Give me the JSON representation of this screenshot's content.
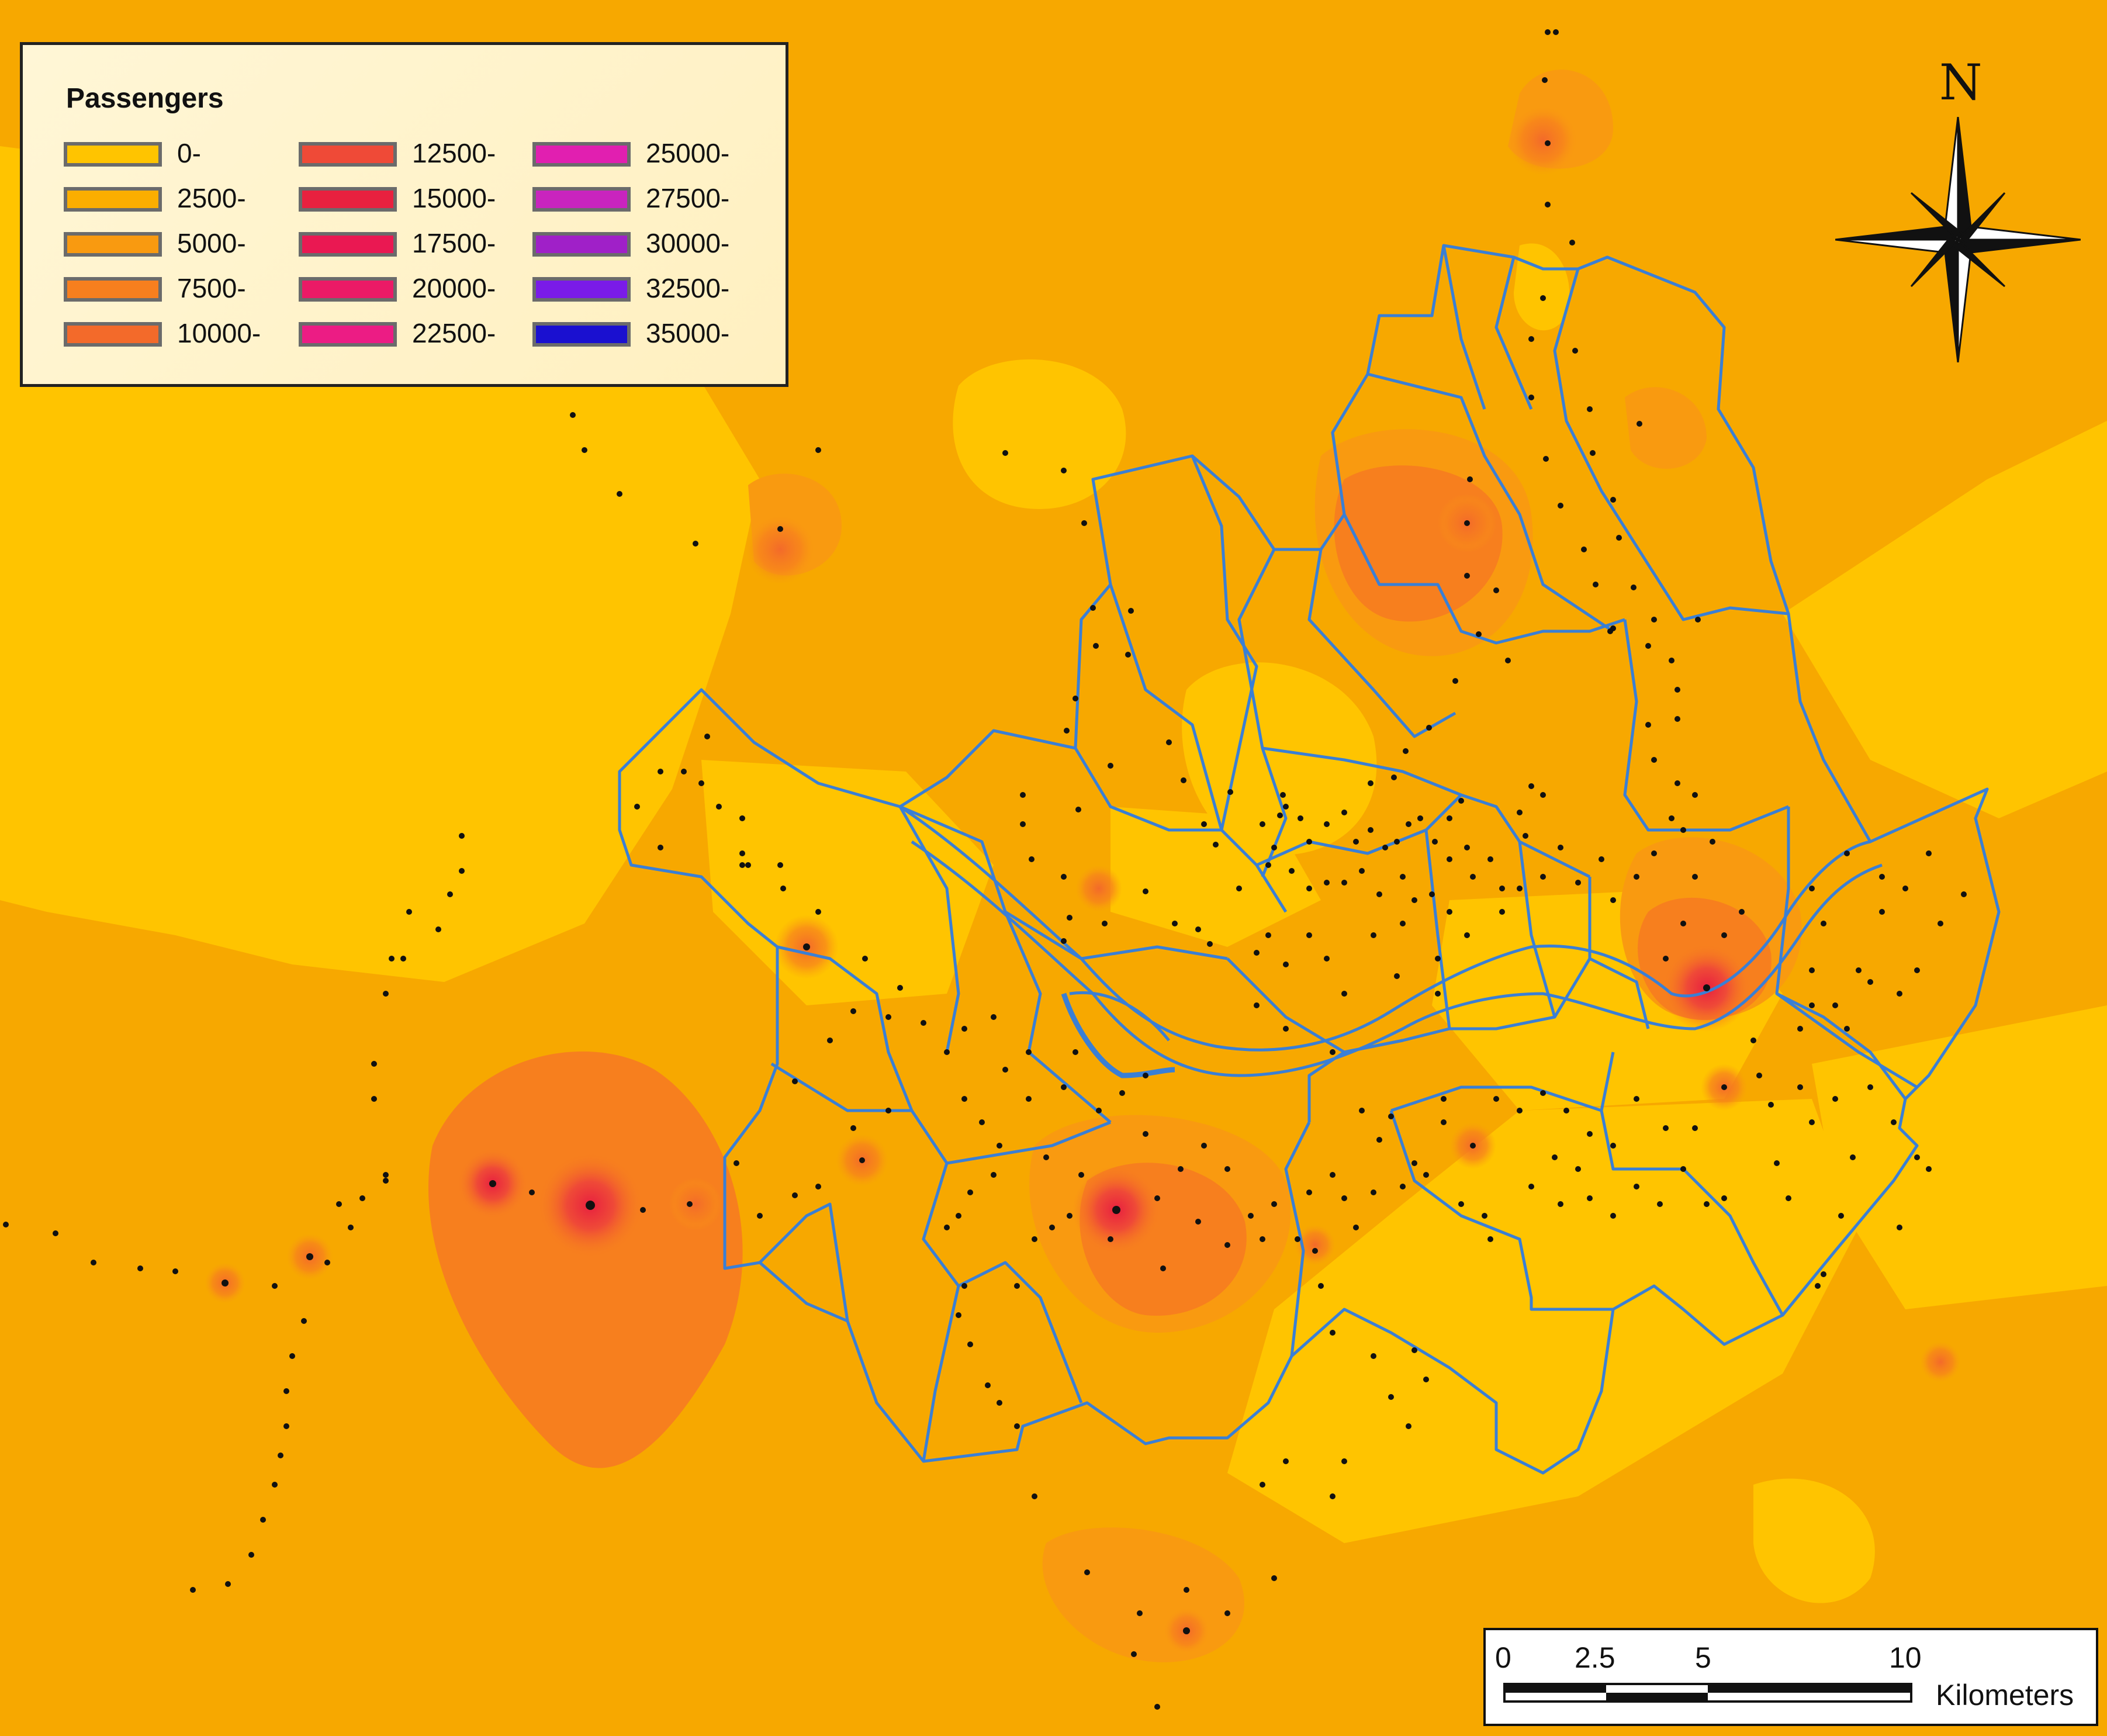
{
  "map": {
    "colors": {
      "background": "#F7A800",
      "light": "#FFC400",
      "boundary": "#3A7FD5",
      "station": "#111111"
    }
  },
  "legend": {
    "title": "Passengers",
    "items": [
      {
        "label": "0-",
        "color": "#FFC400"
      },
      {
        "label": "2500-",
        "color": "#FBAE00"
      },
      {
        "label": "5000-",
        "color": "#F99A10"
      },
      {
        "label": "7500-",
        "color": "#F77F1E"
      },
      {
        "label": "10000-",
        "color": "#F36A2A"
      },
      {
        "label": "12500-",
        "color": "#EF4A37"
      },
      {
        "label": "15000-",
        "color": "#E8213F"
      },
      {
        "label": "17500-",
        "color": "#EA1852"
      },
      {
        "label": "20000-",
        "color": "#EB1A66"
      },
      {
        "label": "22500-",
        "color": "#EC1C84"
      },
      {
        "label": "25000-",
        "color": "#E11FB0"
      },
      {
        "label": "27500-",
        "color": "#C924BE"
      },
      {
        "label": "30000-",
        "color": "#A020C8"
      },
      {
        "label": "32500-",
        "color": "#7A1BE8"
      },
      {
        "label": "35000-",
        "color": "#1A10D0"
      }
    ]
  },
  "north_arrow": {
    "label": "N"
  },
  "scale_bar": {
    "ticks": [
      "0",
      "2.5",
      "5",
      "10"
    ],
    "units": "Kilometers"
  }
}
